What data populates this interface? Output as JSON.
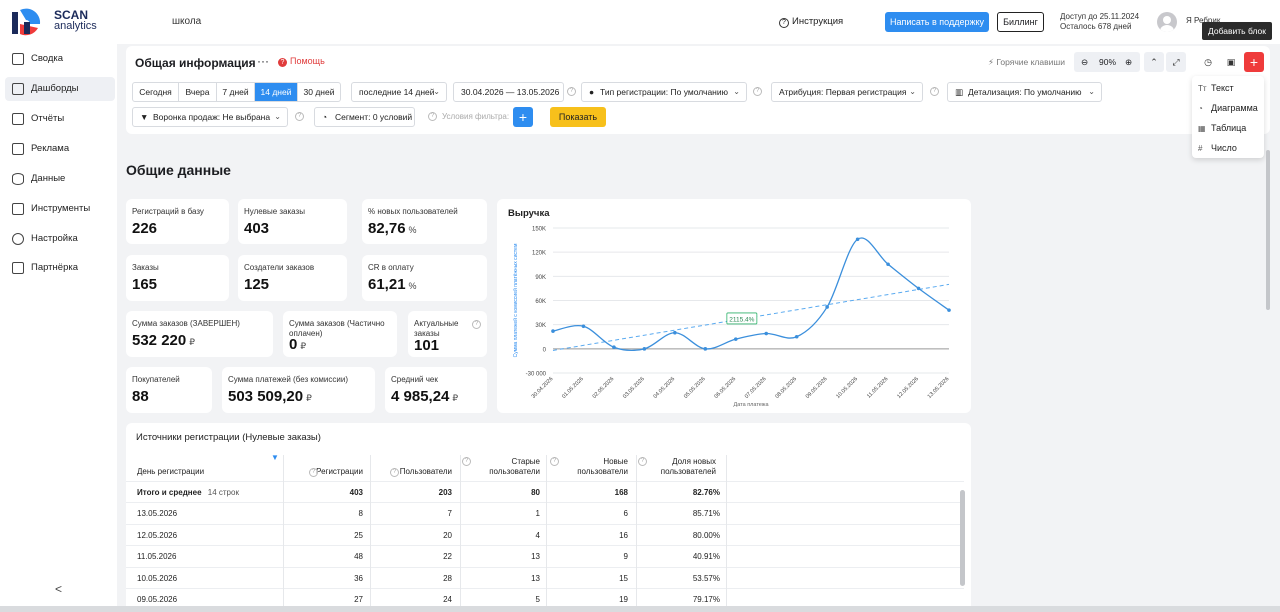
{
  "header": {
    "logo_top": "SCAN",
    "logo_bottom": "analytics",
    "org": "школа",
    "instruction": "Инструкция",
    "support_button": "Написать в поддержку",
    "billing_button": "Биллинг",
    "access_until": "Доступ до 25.11.2024",
    "days_left": "Осталось 678 дней",
    "user_name": "Я Ребрик..."
  },
  "sidebar": {
    "items": [
      {
        "label": "Сводка"
      },
      {
        "label": "Дашборды"
      },
      {
        "label": "Отчёты"
      },
      {
        "label": "Реклама"
      },
      {
        "label": "Данные"
      },
      {
        "label": "Инструменты"
      },
      {
        "label": "Настройка"
      },
      {
        "label": "Партнёрка"
      }
    ],
    "collapse": "<"
  },
  "toolbar": {
    "title": "Общая информация",
    "menu": "···",
    "help": "Помощь",
    "hotkeys": "Горячие клавиши",
    "zoom": "90%",
    "add_tooltip": "Добавить блок"
  },
  "filters": {
    "periods": [
      "Сегодня",
      "Вчера",
      "7 дней",
      "14 дней",
      "30 дней"
    ],
    "period_select": "последние 14 дней",
    "date_from": "30.04.2026",
    "date_sep": "—",
    "date_to": "13.05.2026",
    "reg_type": "Тип регистрации: По умолчанию",
    "attribution": "Атрибуция: Первая регистрация",
    "detail": "Детализация:  По умолчанию",
    "funnel": "Воронка продаж: Не выбрана",
    "segment": "Сегмент: 0 условий",
    "conditions": "Условия фильтра:",
    "show_button": "Показать"
  },
  "add_menu": {
    "items": [
      {
        "icon": "Tт",
        "label": "Текст"
      },
      {
        "icon": "◔",
        "label": "Диаграмма"
      },
      {
        "icon": "▦",
        "label": "Таблица"
      },
      {
        "icon": "#",
        "label": "Число"
      }
    ]
  },
  "section_title": "Общие данные",
  "metrics": [
    {
      "label": "Регистраций в базу",
      "value": "226",
      "unit": ""
    },
    {
      "label": "Нулевые заказы",
      "value": "403",
      "unit": ""
    },
    {
      "label": "% новых пользователей",
      "value": "82,76",
      "unit": "%"
    },
    {
      "label": "Заказы",
      "value": "165",
      "unit": ""
    },
    {
      "label": "Создатели заказов",
      "value": "125",
      "unit": ""
    },
    {
      "label": "CR в оплату",
      "value": "61,21",
      "unit": "%"
    },
    {
      "label": "Сумма заказов (ЗАВЕРШЕН)",
      "value": "532 220",
      "unit": "₽"
    },
    {
      "label": "Сумма заказов (Частично оплачен)",
      "value": "0",
      "unit": "₽"
    },
    {
      "label": "Актуальные заказы",
      "value": "101",
      "unit": ""
    },
    {
      "label": "Покупателей",
      "value": "88",
      "unit": ""
    },
    {
      "label": "Сумма платежей (без комиссии)",
      "value": "503 509,20",
      "unit": "₽"
    },
    {
      "label": "Средний чек",
      "value": "4 985,24",
      "unit": "₽"
    }
  ],
  "chart_data": {
    "type": "line",
    "title": "Выручка",
    "ylabel": "Сумма платежей с комиссией платёжных систем",
    "xlabel": "Дата платежа",
    "ylim": [
      -30000,
      150000
    ],
    "yticks": [
      "150K",
      "120K",
      "90K",
      "60K",
      "30K",
      "0",
      "-30 000"
    ],
    "ytick_values": [
      150000,
      120000,
      90000,
      60000,
      30000,
      0,
      -30000
    ],
    "categories": [
      "30.04.2026",
      "01.05.2026",
      "02.05.2026",
      "03.05.2026",
      "04.05.2026",
      "05.05.2026",
      "06.05.2026",
      "07.05.2026",
      "08.05.2026",
      "09.05.2026",
      "10.05.2026",
      "11.05.2026",
      "12.05.2026",
      "13.05.2026"
    ],
    "series": [
      {
        "values": [
          22000,
          28000,
          2000,
          0,
          20000,
          0,
          12000,
          19000,
          15000,
          52000,
          136000,
          105000,
          75000,
          48000
        ]
      }
    ],
    "trend": {
      "start": -2000,
      "end": 80000,
      "label": "2115.4%"
    },
    "grid": true
  },
  "table": {
    "title": "Источники регистрации (Нулевые заказы)",
    "columns": [
      "День регистрации",
      "Регистрации",
      "Пользователи",
      "Старые пользователи",
      "Новые пользователи",
      "Доля новых пользователей"
    ],
    "total_label": "Итого и среднее",
    "total_rows": "14 строк",
    "total": [
      "403",
      "203",
      "80",
      "168",
      "82.76%"
    ],
    "rows": [
      {
        "date": "13.05.2026",
        "values": [
          "8",
          "7",
          "1",
          "6",
          "85.71%"
        ]
      },
      {
        "date": "12.05.2026",
        "values": [
          "25",
          "20",
          "4",
          "16",
          "80.00%"
        ]
      },
      {
        "date": "11.05.2026",
        "values": [
          "48",
          "22",
          "13",
          "9",
          "40.91%"
        ]
      },
      {
        "date": "10.05.2026",
        "values": [
          "36",
          "28",
          "13",
          "15",
          "53.57%"
        ]
      },
      {
        "date": "09.05.2026",
        "values": [
          "27",
          "24",
          "5",
          "19",
          "79.17%"
        ]
      }
    ]
  }
}
